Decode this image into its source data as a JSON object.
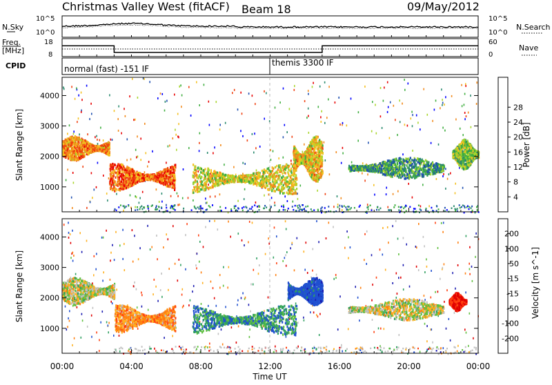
{
  "header": {
    "station": "Christmas Valley West (fitACF)",
    "beam": "Beam 18",
    "date": "09/May/2012"
  },
  "labels": {
    "nsky": "N.Sky",
    "nsearch": "N.Search",
    "freq_line1": "Freq.",
    "freq_line2": "[MHz]",
    "nave": "Nave",
    "cpid": "CPID"
  },
  "cpid_modes": [
    {
      "label": "normal (fast) -151 IF",
      "start_ut": 0
    },
    {
      "label": "themis 3300 IF",
      "start_ut": 12
    }
  ],
  "noise_panel": {
    "left_ticks": [
      "10^5",
      "10^0"
    ],
    "right_ticks": [
      "10^5",
      "10^0"
    ]
  },
  "freq_panel": {
    "left_ticks": [
      "18",
      "8"
    ],
    "right_ticks": [
      "60",
      "0"
    ],
    "freq_mhz": [
      {
        "from_ut": 0,
        "to_ut": 3.0,
        "value": 14.5
      },
      {
        "from_ut": 3.0,
        "to_ut": 15.0,
        "value": 10.5
      },
      {
        "from_ut": 15.0,
        "to_ut": 24,
        "value": 14.5
      }
    ]
  },
  "chart_data": [
    {
      "type": "heatmap",
      "title": "",
      "ylabel": "Slant Range [km]",
      "xlabel": "",
      "xlim_ut_hours": [
        0,
        24
      ],
      "ylim_km": [
        180,
        4600
      ],
      "y_ticks": [
        1000,
        2000,
        3000,
        4000
      ],
      "colorbar": {
        "label": "Power [dB]",
        "ticks": [
          "4",
          "8",
          "12",
          "16",
          "20",
          "24",
          "28"
        ],
        "colors": [
          "#0000ff",
          "#1f4fb0",
          "#2a8a6e",
          "#3fae3f",
          "#a8d62c",
          "#f4c020",
          "#f28a1c",
          "#f04010",
          "#e80000"
        ]
      },
      "regions_approx": [
        {
          "ut": [
            0,
            2.7
          ],
          "km": [
            1900,
            2700
          ],
          "power_db": 24
        },
        {
          "ut": [
            2.7,
            6.5
          ],
          "km": [
            900,
            1800
          ],
          "power_db": 26
        },
        {
          "ut": [
            7.5,
            13.5
          ],
          "km": [
            800,
            1800
          ],
          "power_db": 18
        },
        {
          "ut": [
            13.3,
            15.0
          ],
          "km": [
            1200,
            2700
          ],
          "power_db": 20
        },
        {
          "ut": [
            16.5,
            22.0
          ],
          "km": [
            1300,
            2000
          ],
          "power_db": 10
        },
        {
          "ut": [
            22.5,
            24
          ],
          "km": [
            1600,
            2600
          ],
          "power_db": 14
        }
      ]
    },
    {
      "type": "heatmap",
      "title": "",
      "ylabel": "Slant Range [km]",
      "xlabel": "Time UT",
      "xlim_ut_hours": [
        0,
        24
      ],
      "ylim_km": [
        180,
        4600
      ],
      "y_ticks": [
        1000,
        2000,
        3000,
        4000
      ],
      "x_ticks": [
        "00:00",
        "04:00",
        "08:00",
        "12:00",
        "16:00",
        "20:00",
        "00:00"
      ],
      "colorbar": {
        "label": "Velocity [m s^-1]",
        "ticks": [
          "200",
          "100",
          "50",
          "15",
          "-15",
          "-50",
          "-100",
          "-200"
        ],
        "colors": [
          "#1a1ab0",
          "#2050d0",
          "#30a060",
          "#60c040",
          "#c0c0c0",
          "#ffb020",
          "#ff8010",
          "#ff4010",
          "#e00000"
        ]
      },
      "regions_approx": [
        {
          "ut": [
            0,
            3.0
          ],
          "km": [
            1800,
            2700
          ],
          "velocity_ms": 0
        },
        {
          "ut": [
            3.0,
            6.5
          ],
          "km": [
            900,
            1800
          ],
          "velocity_ms": -60
        },
        {
          "ut": [
            7.5,
            13.5
          ],
          "km": [
            800,
            1800
          ],
          "velocity_ms": 80
        },
        {
          "ut": [
            13.0,
            15.0
          ],
          "km": [
            1800,
            2700
          ],
          "velocity_ms": 150
        },
        {
          "ut": [
            16.5,
            22.0
          ],
          "km": [
            1300,
            2000
          ],
          "velocity_ms": 0
        },
        {
          "ut": [
            22.3,
            23.3
          ],
          "km": [
            1600,
            2200
          ],
          "velocity_ms": -200
        }
      ]
    }
  ]
}
